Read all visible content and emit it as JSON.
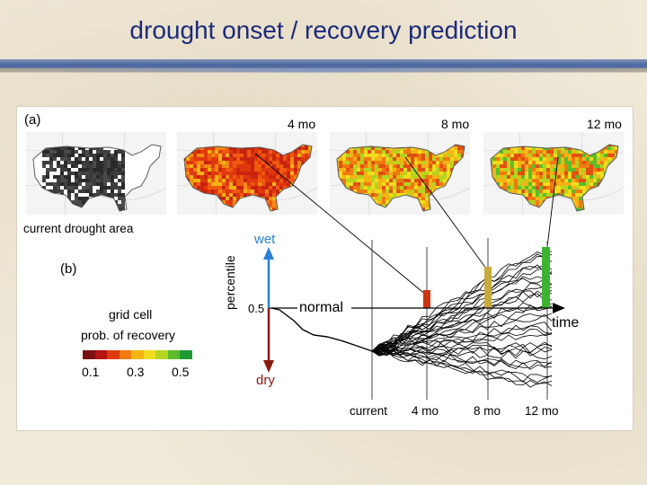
{
  "title": "drought onset / recovery prediction",
  "panel_a": {
    "label": "(a)",
    "caption": "current drought area",
    "maps": [
      {
        "name": "current",
        "heading": ""
      },
      {
        "name": "4mo",
        "heading": "4 mo"
      },
      {
        "name": "8mo",
        "heading": "8 mo"
      },
      {
        "name": "12mo",
        "heading": "12 mo"
      }
    ]
  },
  "panel_b": {
    "label": "(b)",
    "legend": {
      "title_line1": "grid cell",
      "title_line2": "prob. of recovery",
      "ticks": [
        "0.1",
        "0.3",
        "0.5"
      ],
      "colors": [
        "#7a1010",
        "#b31414",
        "#e03a0e",
        "#f07a10",
        "#f4b414",
        "#f2dc1e",
        "#b4d41e",
        "#5cbc2a",
        "#1e9a30"
      ]
    },
    "axis": {
      "ylabel": "percentile",
      "wet": "wet",
      "dry": "dry",
      "level_label": "0.5",
      "normal": "normal",
      "time": "time",
      "xticks": [
        "current",
        "4 mo",
        "8 mo",
        "12 mo"
      ]
    },
    "bar_colors": {
      "4mo": "#cc3311",
      "8mo": "#c8aa3c",
      "12mo": "#3cb432"
    },
    "wet_color": "#2b7fd6",
    "dry_color": "#8b1a10"
  }
}
